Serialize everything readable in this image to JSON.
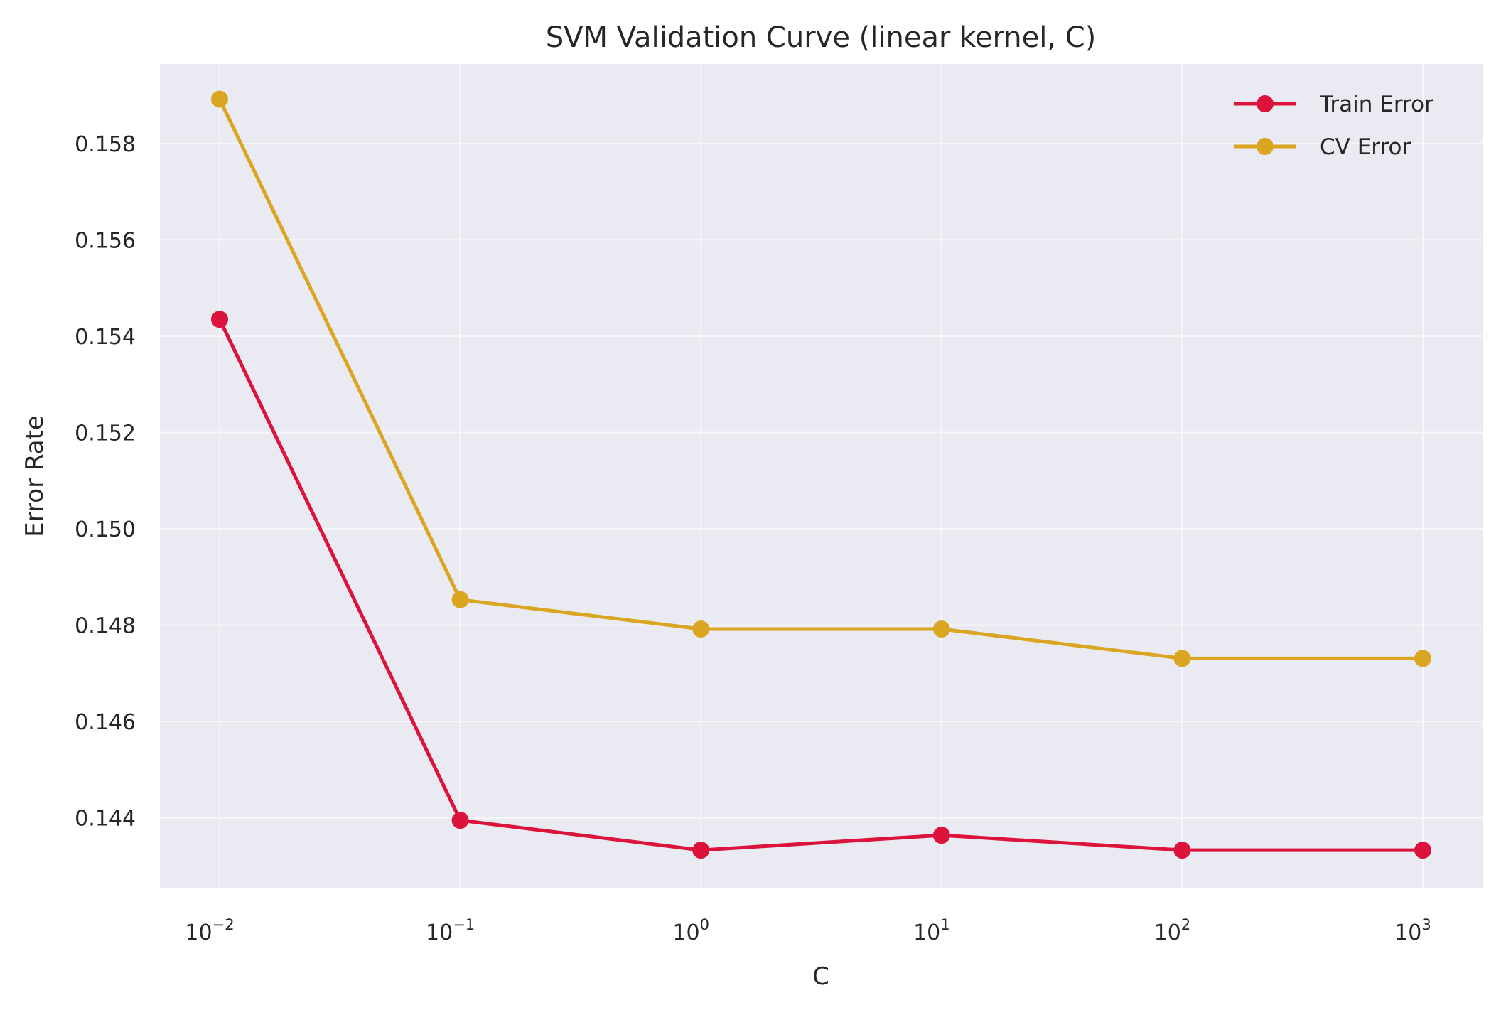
{
  "chart_data": {
    "type": "line",
    "title": "SVM Validation Curve (linear kernel, C)",
    "xlabel": "C",
    "ylabel": "Error Rate",
    "x_scale": "log",
    "x": [
      0.01,
      0.1,
      1,
      10,
      100,
      1000
    ],
    "x_tick_labels": [
      {
        "base": "10",
        "exp": "−2"
      },
      {
        "base": "10",
        "exp": "−1"
      },
      {
        "base": "10",
        "exp": "0"
      },
      {
        "base": "10",
        "exp": "1"
      },
      {
        "base": "10",
        "exp": "2"
      },
      {
        "base": "10",
        "exp": "3"
      }
    ],
    "y_ticks": [
      "0.144",
      "0.146",
      "0.148",
      "0.150",
      "0.152",
      "0.154",
      "0.156",
      "0.158"
    ],
    "ylim": [
      0.14255,
      0.15965
    ],
    "grid": true,
    "legend_position": "top-right",
    "series": [
      {
        "name": "Train Error",
        "color": "#dc143c",
        "values": [
          0.15435,
          0.14395,
          0.14333,
          0.14364,
          0.14333,
          0.14333
        ]
      },
      {
        "name": "CV  Error",
        "color": "#daa520",
        "values": [
          0.15892,
          0.14853,
          0.14792,
          0.14792,
          0.14731,
          0.14731
        ]
      }
    ],
    "background": "#eaeaf2"
  }
}
